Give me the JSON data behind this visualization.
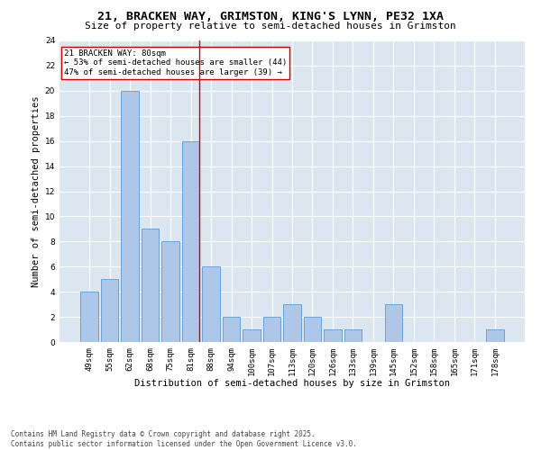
{
  "title_line1": "21, BRACKEN WAY, GRIMSTON, KING'S LYNN, PE32 1XA",
  "title_line2": "Size of property relative to semi-detached houses in Grimston",
  "xlabel": "Distribution of semi-detached houses by size in Grimston",
  "ylabel": "Number of semi-detached properties",
  "categories": [
    "49sqm",
    "55sqm",
    "62sqm",
    "68sqm",
    "75sqm",
    "81sqm",
    "88sqm",
    "94sqm",
    "100sqm",
    "107sqm",
    "113sqm",
    "120sqm",
    "126sqm",
    "133sqm",
    "139sqm",
    "145sqm",
    "152sqm",
    "158sqm",
    "165sqm",
    "171sqm",
    "178sqm"
  ],
  "values": [
    4,
    5,
    20,
    9,
    8,
    16,
    6,
    2,
    1,
    2,
    3,
    2,
    1,
    1,
    0,
    3,
    0,
    0,
    0,
    0,
    1
  ],
  "bar_color": "#aec6e8",
  "bar_edge_color": "#5b9bd5",
  "vline_index": 5,
  "vline_color": "#cc0000",
  "annotation_text": "21 BRACKEN WAY: 80sqm\n← 53% of semi-detached houses are smaller (44)\n47% of semi-detached houses are larger (39) →",
  "annotation_box_color": "#ffffff",
  "annotation_box_edge": "#cc0000",
  "ylim": [
    0,
    24
  ],
  "yticks": [
    0,
    2,
    4,
    6,
    8,
    10,
    12,
    14,
    16,
    18,
    20,
    22,
    24
  ],
  "plot_bg_color": "#dce6f1",
  "footer": "Contains HM Land Registry data © Crown copyright and database right 2025.\nContains public sector information licensed under the Open Government Licence v3.0.",
  "title_fontsize": 9.5,
  "subtitle_fontsize": 8,
  "xlabel_fontsize": 7.5,
  "ylabel_fontsize": 7.5,
  "tick_fontsize": 6.5,
  "annot_fontsize": 6.5,
  "footer_fontsize": 5.5
}
